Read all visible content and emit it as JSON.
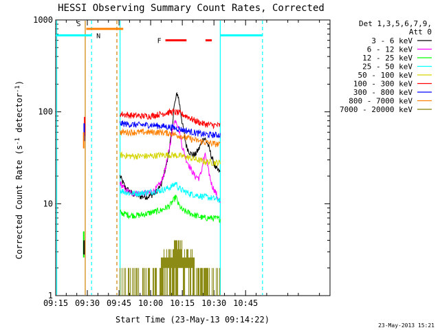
{
  "chart_data": {
    "type": "line",
    "title": "HESSI Observing Summary Count Rates, Corrected",
    "xlabel": "Start Time (23-May-13 09:14:22)",
    "ylabel": "Corrected Count Rate (s⁻¹ detector⁻¹)",
    "ylabel_parts": [
      "Corrected Count Rate (s",
      "-1",
      " detector",
      "-1",
      ")"
    ],
    "x_range_min": [
      0,
      130
    ],
    "y_scale": "log",
    "ylim": [
      1,
      1000
    ],
    "x_ticks": [
      {
        "min": 0,
        "label": "09:15"
      },
      {
        "min": 15,
        "label": "09:30"
      },
      {
        "min": 30,
        "label": "09:45"
      },
      {
        "min": 45,
        "label": "10:00"
      },
      {
        "min": 60,
        "label": "10:15"
      },
      {
        "min": 75,
        "label": "10:30"
      },
      {
        "min": 90,
        "label": "10:45"
      }
    ],
    "y_ticks": [
      {
        "value": 1,
        "label": "1"
      },
      {
        "value": 10,
        "label": "10"
      },
      {
        "value": 100,
        "label": "100"
      },
      {
        "value": 1000,
        "label": "1000"
      }
    ],
    "legend": {
      "position": "right",
      "header": [
        "Det 1,3,5,6,7,9,",
        "Att 0"
      ],
      "entries": [
        {
          "label": "3 - 6 keV",
          "color": "#000000"
        },
        {
          "label": "6 - 12 keV",
          "color": "#ff00ff"
        },
        {
          "label": "12 - 25 keV",
          "color": "#00ff00"
        },
        {
          "label": "25 - 50 keV",
          "color": "#00ffff"
        },
        {
          "label": "50 - 100 keV",
          "color": "#d4d400"
        },
        {
          "label": "100 - 300 keV",
          "color": "#ff0000"
        },
        {
          "label": "300 - 800 keV",
          "color": "#0000ff"
        },
        {
          "label": "800 - 7000 keV",
          "color": "#ff8000"
        },
        {
          "label": "7000 - 20000 keV",
          "color": "#808000"
        }
      ]
    },
    "series": [
      {
        "label": "3 - 6 keV",
        "color": "#000000",
        "x": [
          30.5,
          33,
          36,
          40,
          44,
          47,
          50,
          53,
          55,
          56,
          57,
          57.5,
          58,
          59,
          60,
          61,
          62,
          63,
          64,
          66,
          68,
          70,
          71,
          72,
          73,
          74,
          75,
          76,
          78
        ],
        "y": [
          20,
          15,
          13,
          12,
          12,
          13,
          16,
          30,
          60,
          110,
          140,
          160,
          150,
          110,
          75,
          55,
          42,
          38,
          35,
          34,
          40,
          52,
          50,
          45,
          38,
          32,
          27,
          24,
          22
        ]
      },
      {
        "label": "6 - 12 keV",
        "color": "#ff00ff",
        "x": [
          30.5,
          33,
          36,
          40,
          44,
          47,
          50,
          52,
          54,
          56,
          57,
          58,
          59,
          60,
          62,
          64,
          66,
          68,
          69,
          70,
          71,
          72,
          74,
          76,
          78
        ],
        "y": [
          17,
          14,
          13,
          13,
          13,
          14,
          17,
          24,
          42,
          75,
          82,
          70,
          55,
          42,
          30,
          24,
          20,
          19,
          22,
          30,
          34,
          25,
          16,
          13,
          10
        ]
      },
      {
        "label": "12 - 25 keV",
        "color": "#00ff00",
        "x": [
          30.5,
          35,
          40,
          45,
          50,
          54,
          56,
          57,
          58,
          60,
          63,
          66,
          70,
          74,
          78
        ],
        "y": [
          8,
          7.5,
          7.5,
          8,
          8.5,
          9.5,
          11,
          12,
          10,
          8.5,
          8,
          7.5,
          7,
          7,
          6.8
        ]
      },
      {
        "label": "25 - 50 keV",
        "color": "#00ffff",
        "x": [
          30.5,
          35,
          40,
          45,
          50,
          54,
          56,
          57,
          58,
          60,
          63,
          66,
          70,
          74,
          78
        ],
        "y": [
          14,
          13,
          13,
          13.5,
          14,
          15,
          16,
          17,
          15,
          14,
          13,
          12.5,
          12,
          11.5,
          11
        ]
      },
      {
        "label": "50 - 100 keV",
        "color": "#d4d400",
        "x": [
          30.5,
          35,
          40,
          45,
          50,
          55,
          60,
          65,
          70,
          75,
          78
        ],
        "y": [
          34,
          33,
          33,
          33,
          34,
          34,
          33,
          31,
          29,
          28,
          28
        ]
      },
      {
        "label": "100 - 300 keV",
        "color": "#ff0000",
        "x": [
          30.5,
          35,
          40,
          45,
          50,
          55,
          58,
          62,
          66,
          70,
          74,
          78
        ],
        "y": [
          95,
          92,
          90,
          90,
          95,
          100,
          98,
          90,
          80,
          74,
          72,
          71
        ]
      },
      {
        "label": "300 - 800 keV",
        "color": "#0000ff",
        "x": [
          30.5,
          35,
          40,
          45,
          50,
          55,
          60,
          65,
          70,
          75,
          78
        ],
        "y": [
          75,
          73,
          72,
          72,
          70,
          68,
          64,
          60,
          57,
          56,
          56
        ]
      },
      {
        "label": "800 - 7000 keV",
        "color": "#ff8000",
        "x": [
          30.5,
          35,
          40,
          45,
          50,
          55,
          60,
          65,
          70,
          75,
          78
        ],
        "y": [
          60,
          60,
          60,
          60,
          60,
          58,
          54,
          50,
          47,
          45,
          44
        ]
      }
    ],
    "spike_at_min": 13.5,
    "spike": [
      {
        "color": "#ff0000",
        "y": [
          55,
          88
        ]
      },
      {
        "color": "#0000ff",
        "y": [
          48,
          75
        ]
      },
      {
        "color": "#ff8000",
        "y": [
          40,
          60
        ]
      },
      {
        "color": "#00ff00",
        "y": [
          2.6,
          5
        ]
      },
      {
        "color": "#000000",
        "y": [
          2.8,
          4
        ]
      }
    ],
    "noise_series": {
      "label": "7000 - 20000 keV",
      "color": "#808000",
      "x_range": [
        30.5,
        78
      ],
      "levels": [
        1,
        2,
        2.6,
        3.2,
        4
      ]
    },
    "orbit_marks": {
      "S": {
        "label": "S",
        "color": "#ff8000",
        "x": [
          14.5,
          32
        ],
        "y": 800
      },
      "N": {
        "label": "N",
        "color": "#00ffff",
        "y": 680,
        "segments": [
          [
            0,
            17
          ],
          [
            78,
            98
          ]
        ]
      },
      "F": {
        "label": "F",
        "color": "#ff0000",
        "y": 600,
        "segments": [
          [
            52,
            62
          ],
          [
            71,
            74
          ]
        ]
      }
    },
    "vertical_lines": [
      {
        "x": 0.5,
        "color": "#00ffff",
        "style": "solid"
      },
      {
        "x": 14,
        "color": "#d08000",
        "style": "solid"
      },
      {
        "x": 17,
        "color": "#00ffff",
        "style": "dashed"
      },
      {
        "x": 29,
        "color": "#d08000",
        "style": "dashed"
      },
      {
        "x": 30.5,
        "color": "#00ffff",
        "style": "solid"
      },
      {
        "x": 78,
        "color": "#00ffff",
        "style": "solid"
      },
      {
        "x": 98,
        "color": "#00ffff",
        "style": "dashed"
      }
    ]
  },
  "footer": {
    "timestamp": "23-May-2013 15:21"
  }
}
